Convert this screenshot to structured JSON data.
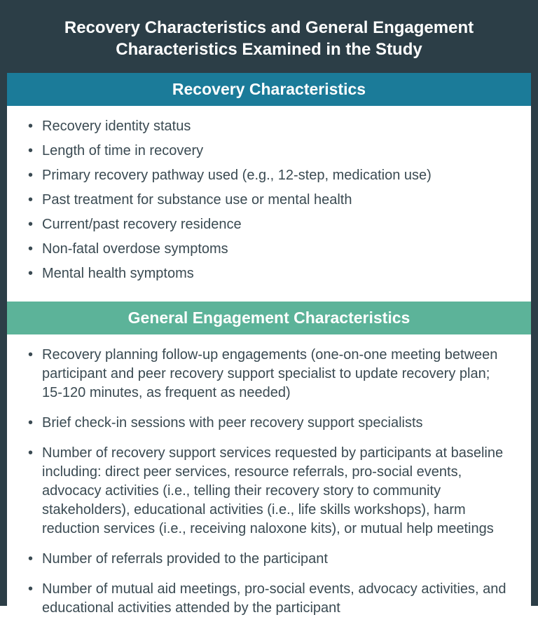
{
  "colors": {
    "container_bg": "#2c3e47",
    "header_recovery_bg": "#1b7b99",
    "header_engagement_bg": "#5cb399",
    "text_light": "#ffffff",
    "text_body": "#3a4a52",
    "list_bg": "#ffffff"
  },
  "main_title": "Recovery Characteristics and General Engagement Characteristics Examined in the Study",
  "sections": {
    "recovery": {
      "title": "Recovery Characteristics",
      "items": [
        "Recovery identity status",
        "Length of time in recovery",
        "Primary recovery pathway used (e.g., 12-step, medication use)",
        "Past treatment for substance use or mental health",
        "Current/past recovery residence",
        "Non-fatal overdose symptoms",
        "Mental health symptoms"
      ]
    },
    "engagement": {
      "title": "General Engagement Characteristics",
      "items": [
        "Recovery planning follow-up engagements (one-on-one meeting between participant and peer recovery support specialist to update recovery plan; 15-120 minutes, as frequent as needed)",
        "Brief check-in sessions with peer recovery support specialists",
        "Number of recovery support services requested by participants at baseline including: direct peer services, resource referrals, pro-social events, advocacy activities (i.e., telling their recovery story to community stakeholders), educational activities (i.e., life skills workshops), harm reduction services (i.e., receiving naloxone kits), or mutual help meetings",
        "Number of referrals provided to the participant",
        "Number of mutual aid meetings, pro-social events, advocacy activities, and educational activities attended by the participant"
      ]
    }
  }
}
